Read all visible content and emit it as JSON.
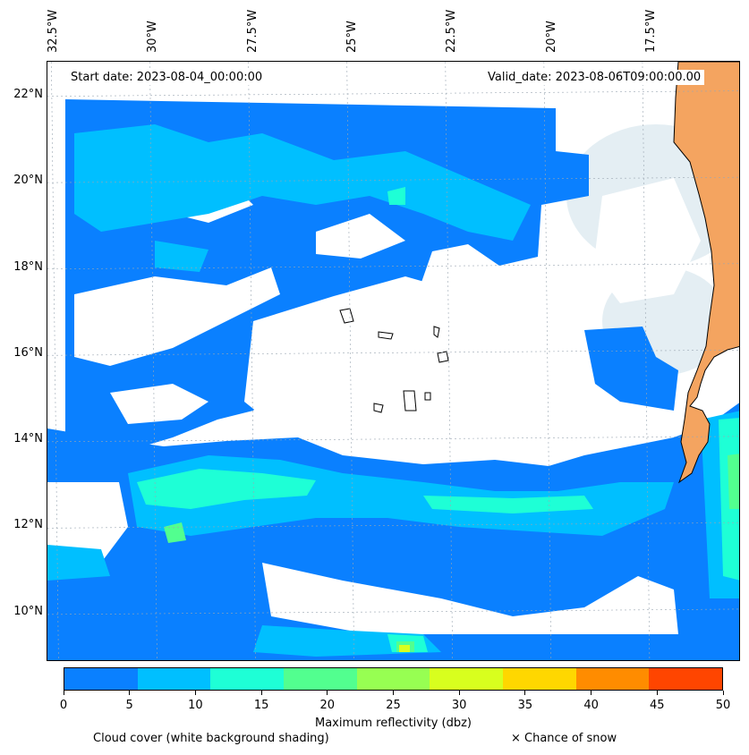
{
  "map": {
    "start_date": "Start date: 2023-08-04_00:00:00",
    "valid_date": "Valid_date: 2023-08-06T09:00:00.00",
    "lon_labels": [
      "32.5°W",
      "30°W",
      "27.5°W",
      "25°W",
      "22.5°W",
      "20°W",
      "17.5°W"
    ],
    "lat_labels": [
      "22°N",
      "20°N",
      "18°N",
      "16°N",
      "14°N",
      "12°N",
      "10°N"
    ],
    "lon_values": [
      -32.5,
      -30,
      -27.5,
      -25,
      -22.5,
      -20,
      -17.5
    ],
    "lat_values": [
      22,
      20,
      18,
      16,
      14,
      12,
      10
    ],
    "lon_range": [
      -32.6,
      -15.0
    ],
    "lat_range": [
      8.9,
      22.8
    ],
    "land_color": "#f4a460",
    "cloud_color": "#dbe9ef"
  },
  "colorbar": {
    "title": "Maximum reflectivity (dbz)",
    "ticks": [
      "0",
      "5",
      "10",
      "15",
      "20",
      "25",
      "30",
      "35",
      "40",
      "45",
      "50"
    ],
    "tick_values": [
      0,
      5,
      10,
      15,
      20,
      25,
      30,
      35,
      40,
      45,
      50
    ],
    "colors": [
      "#0a80ff",
      "#00bfff",
      "#1effd6",
      "#52ff8f",
      "#97ff52",
      "#d8ff1e",
      "#ffd700",
      "#ff8c00",
      "#ff4500"
    ]
  },
  "legend": {
    "cloud_cover": "Cloud cover (white background shading)",
    "snow": "× Chance of snow"
  }
}
